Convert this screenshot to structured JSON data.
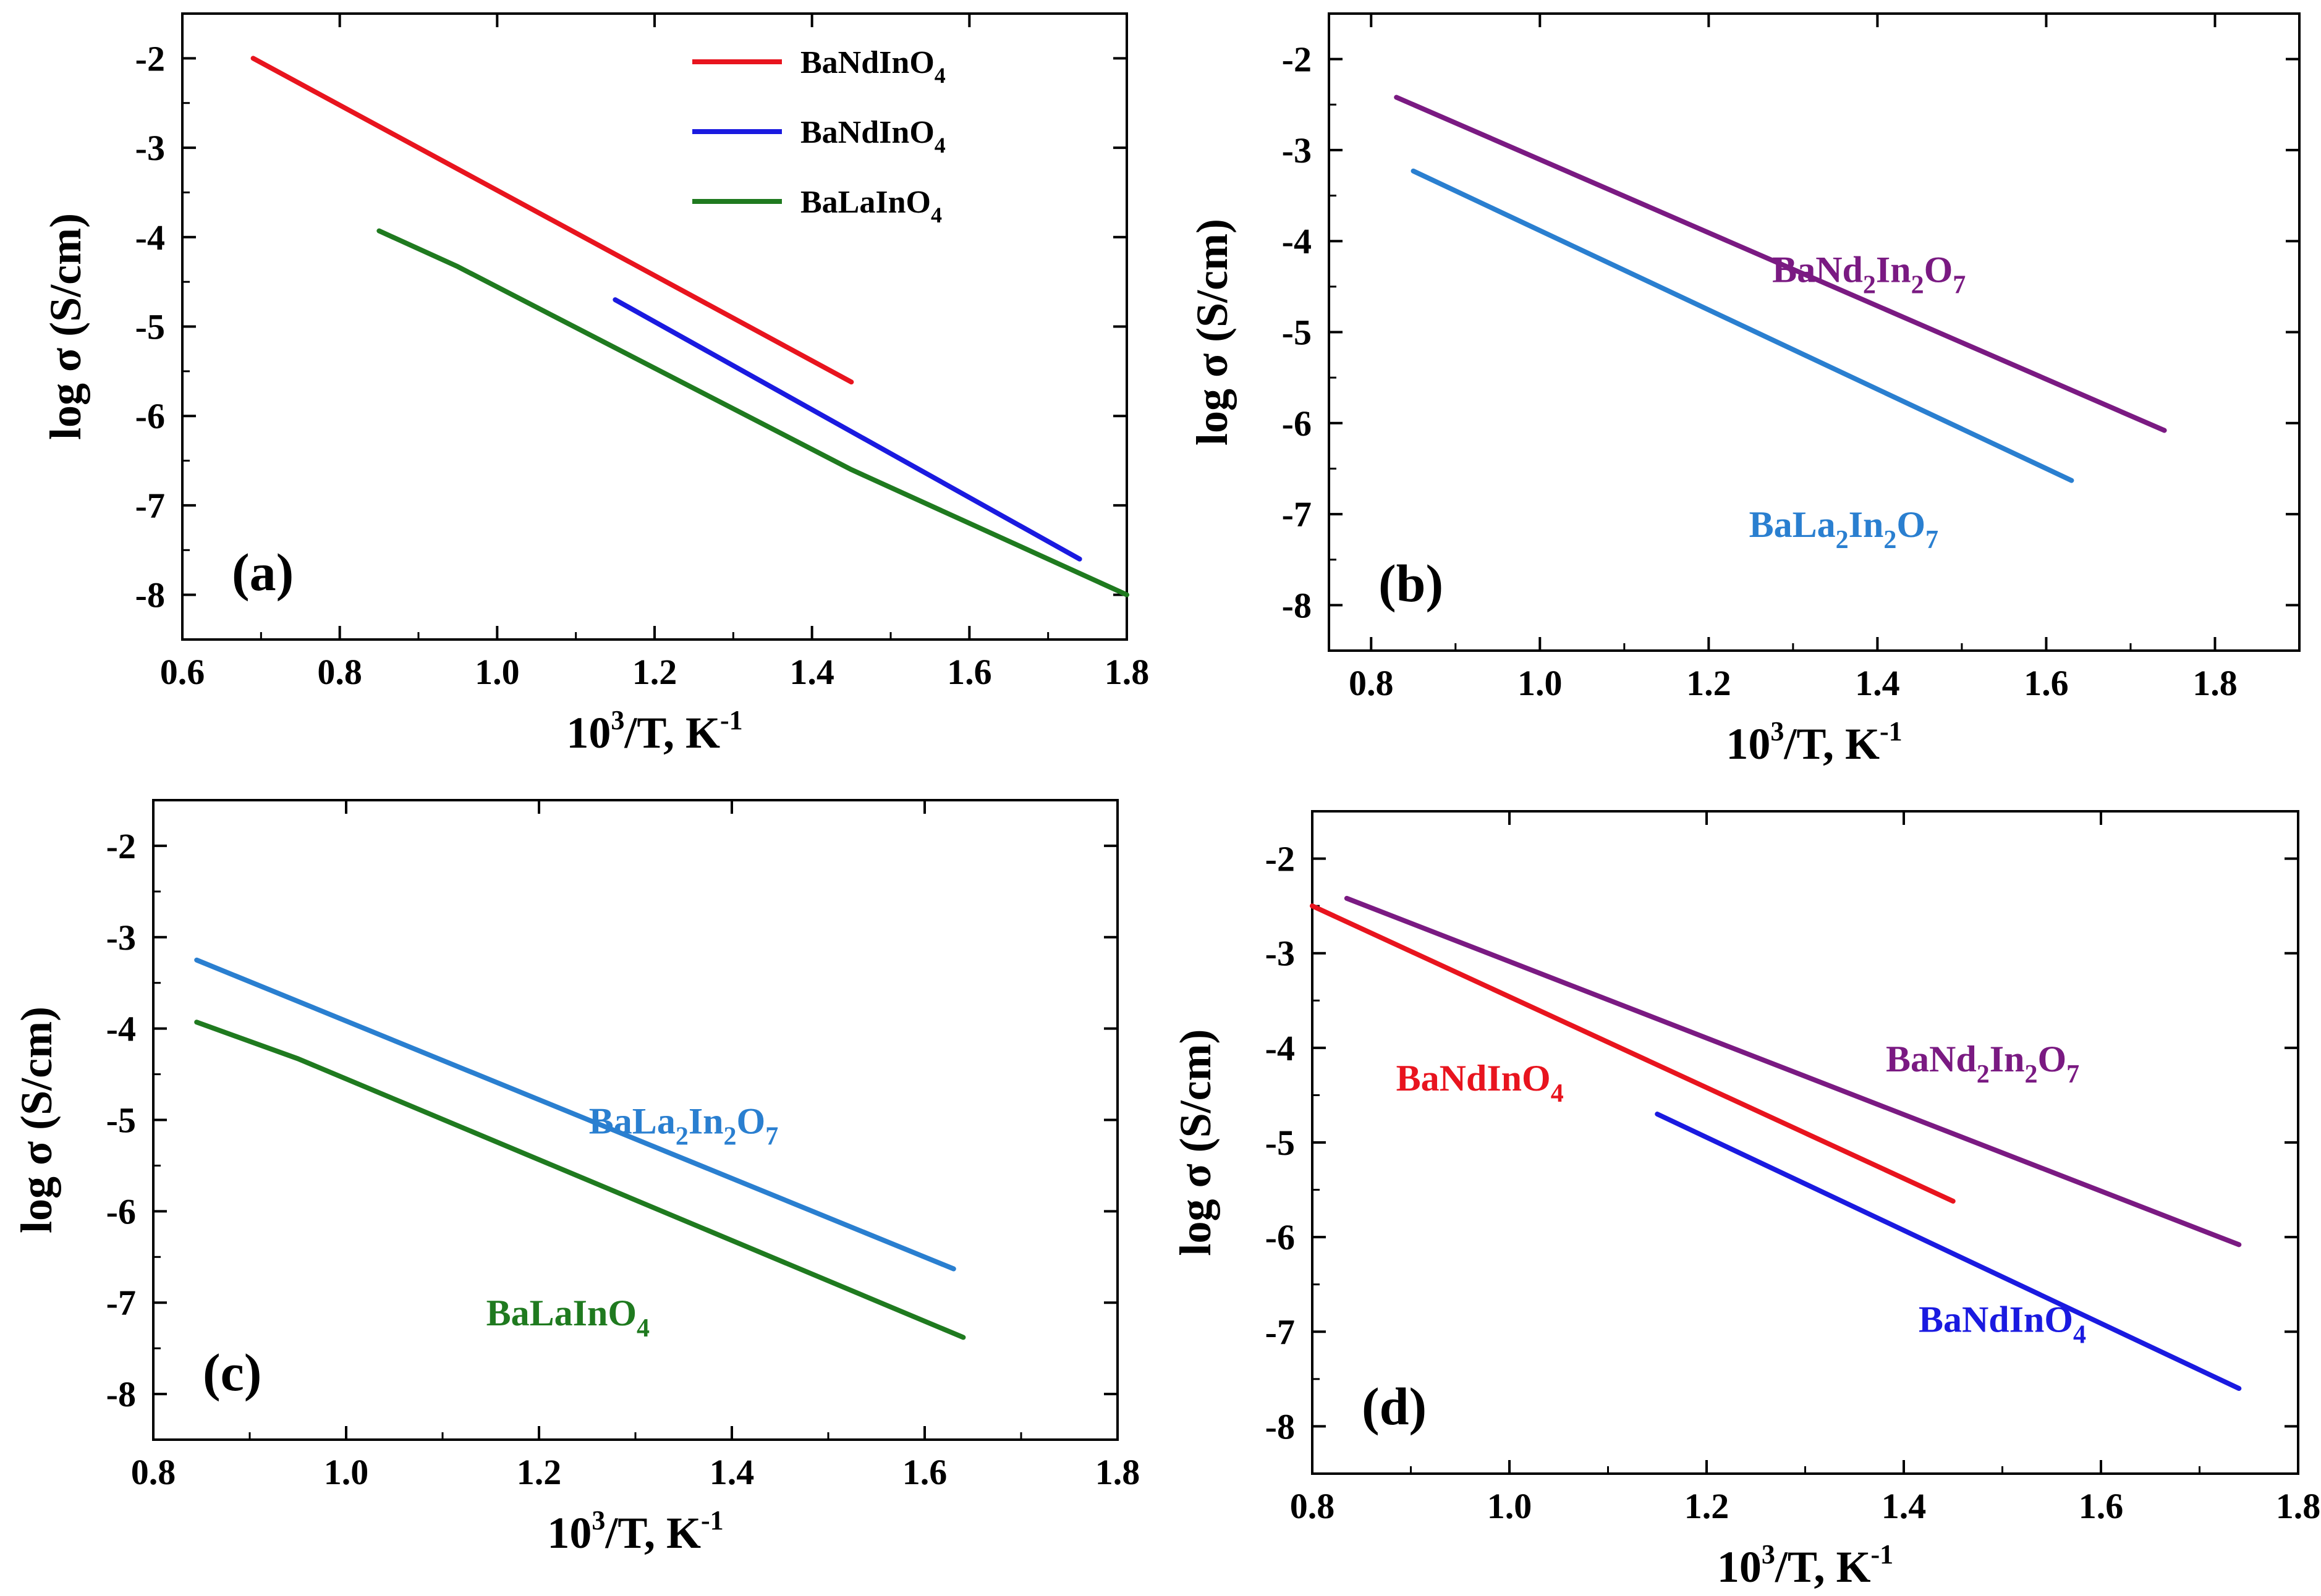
{
  "colors": {
    "red": "#e8141e",
    "blue": "#1a1ae0",
    "green": "#1f7a1f",
    "purple": "#7a1a82",
    "skyblue": "#2a7fd0"
  },
  "chart_data": [
    {
      "id": "a",
      "type": "line",
      "panel_label": "(a)",
      "xlabel": {
        "base": "10",
        "sup": "3",
        "mid": "/T, K",
        "sup2": "-1"
      },
      "ylabel": "log σ (S/cm)",
      "xlim": [
        0.6,
        1.8
      ],
      "ylim": [
        -8.5,
        -1.5
      ],
      "xticks": [
        0.6,
        0.8,
        1.0,
        1.2,
        1.4,
        1.6,
        1.8
      ],
      "xtick_labels": [
        "0.6",
        "0.8",
        "1.0",
        "1.2",
        "1.4",
        "1.6",
        "1.8"
      ],
      "yticks": [
        -8,
        -7,
        -6,
        -5,
        -4,
        -3,
        -2
      ],
      "ytick_labels": [
        "-8",
        "-7",
        "-6",
        "-5",
        "-4",
        "-3",
        "-2"
      ],
      "legend_position": "top-right",
      "series": [
        {
          "name": "BaNdInO",
          "sub": "4",
          "color_key": "red",
          "x": [
            0.69,
            1.45
          ],
          "y": [
            -2.0,
            -5.62
          ],
          "label": {
            "show": false
          }
        },
        {
          "name": "BaNdInO",
          "sub": "4",
          "color_key": "blue",
          "x": [
            1.15,
            1.74
          ],
          "y": [
            -4.7,
            -7.6
          ],
          "label": {
            "show": false
          }
        },
        {
          "name": "BaLaInO",
          "sub": "4",
          "color_key": "green",
          "x": [
            0.85,
            0.95,
            1.45,
            1.8
          ],
          "y": [
            -3.93,
            -4.33,
            -6.6,
            -8.0
          ],
          "label": {
            "show": false
          }
        }
      ]
    },
    {
      "id": "b",
      "type": "line",
      "panel_label": "(b)",
      "xlabel": {
        "base": "10",
        "sup": "3",
        "mid": "/T, K",
        "sup2": "-1"
      },
      "ylabel": "log σ (S/cm)",
      "xlim": [
        0.75,
        1.9
      ],
      "ylim": [
        -8.5,
        -1.5
      ],
      "xticks": [
        0.8,
        1.0,
        1.2,
        1.4,
        1.6,
        1.8
      ],
      "xtick_labels": [
        "0.8",
        "1.0",
        "1.2",
        "1.4",
        "1.6",
        "1.8"
      ],
      "yticks": [
        -8,
        -7,
        -6,
        -5,
        -4,
        -3,
        -2
      ],
      "ytick_labels": [
        "-8",
        "-7",
        "-6",
        "-5",
        "-4",
        "-3",
        "-2"
      ],
      "series": [
        {
          "name": "BaNd",
          "color_key": "purple",
          "x": [
            0.83,
            1.74
          ],
          "y": [
            -2.42,
            -6.08
          ],
          "label": {
            "show": true,
            "parts": [
              [
                "BaNd",
                ""
              ],
              [
                "2",
                "sub"
              ],
              [
                "In",
                ""
              ],
              [
                "2",
                "sub"
              ],
              [
                "O",
                ""
              ],
              [
                "7",
                "sub"
              ]
            ],
            "x": 1.39,
            "y": -4.45
          }
        },
        {
          "name": "BaLa",
          "color_key": "skyblue",
          "x": [
            0.85,
            1.63
          ],
          "y": [
            -3.23,
            -6.63
          ],
          "label": {
            "show": true,
            "parts": [
              [
                "BaLa",
                ""
              ],
              [
                "2",
                "sub"
              ],
              [
                "In",
                ""
              ],
              [
                "2",
                "sub"
              ],
              [
                "O",
                ""
              ],
              [
                "7",
                "sub"
              ]
            ],
            "x": 1.36,
            "y": -7.25
          }
        }
      ]
    },
    {
      "id": "c",
      "type": "line",
      "panel_label": "(c)",
      "xlabel": {
        "base": "10",
        "sup": "3",
        "mid": "/T, K",
        "sup2": "-1"
      },
      "ylabel": "log σ (S/cm)",
      "xlim": [
        0.8,
        1.8
      ],
      "ylim": [
        -8.5,
        -1.5
      ],
      "xticks": [
        0.8,
        1.0,
        1.2,
        1.4,
        1.6,
        1.8
      ],
      "xtick_labels": [
        "0.8",
        "1.0",
        "1.2",
        "1.4",
        "1.6",
        "1.8"
      ],
      "yticks": [
        -8,
        -7,
        -6,
        -5,
        -4,
        -3,
        -2
      ],
      "ytick_labels": [
        "-8",
        "-7",
        "-6",
        "-5",
        "-4",
        "-3",
        "-2"
      ],
      "series": [
        {
          "name": "BaLa",
          "color_key": "skyblue",
          "x": [
            0.845,
            1.63
          ],
          "y": [
            -3.25,
            -6.63
          ],
          "label": {
            "show": true,
            "parts": [
              [
                "BaLa",
                ""
              ],
              [
                "2",
                "sub"
              ],
              [
                "In",
                ""
              ],
              [
                "2",
                "sub"
              ],
              [
                "O",
                ""
              ],
              [
                "7",
                "sub"
              ]
            ],
            "x": 1.35,
            "y": -5.15
          }
        },
        {
          "name": "BaLaInO",
          "color_key": "green",
          "x": [
            0.845,
            0.95,
            1.64
          ],
          "y": [
            -3.93,
            -4.33,
            -7.38
          ],
          "label": {
            "show": true,
            "parts": [
              [
                "BaLaInO",
                ""
              ],
              [
                "4",
                "sub"
              ]
            ],
            "x": 1.23,
            "y": -7.25
          }
        }
      ]
    },
    {
      "id": "d",
      "type": "line",
      "panel_label": "(d)",
      "xlabel": {
        "base": "10",
        "sup": "3",
        "mid": "/T, K",
        "sup2": "-1"
      },
      "ylabel": "log σ (S/cm)",
      "xlim": [
        0.8,
        1.8
      ],
      "ylim": [
        -8.5,
        -1.5
      ],
      "xticks": [
        0.8,
        1.0,
        1.2,
        1.4,
        1.6,
        1.8
      ],
      "xtick_labels": [
        "0.8",
        "1.0",
        "1.2",
        "1.4",
        "1.6",
        "1.8"
      ],
      "yticks": [
        -8,
        -7,
        -6,
        -5,
        -4,
        -3,
        -2
      ],
      "ytick_labels": [
        "-8",
        "-7",
        "-6",
        "-5",
        "-4",
        "-3",
        "-2"
      ],
      "series": [
        {
          "name": "BaNd",
          "color_key": "purple",
          "x": [
            0.835,
            1.74
          ],
          "y": [
            -2.42,
            -6.08
          ],
          "label": {
            "show": true,
            "parts": [
              [
                "BaNd",
                ""
              ],
              [
                "2",
                "sub"
              ],
              [
                "In",
                ""
              ],
              [
                "2",
                "sub"
              ],
              [
                "O",
                ""
              ],
              [
                "7",
                "sub"
              ]
            ],
            "x": 1.48,
            "y": -4.25
          }
        },
        {
          "name": "BaNdInO",
          "color_key": "red",
          "x": [
            0.8,
            1.45
          ],
          "y": [
            -2.5,
            -5.62
          ],
          "label": {
            "show": true,
            "parts": [
              [
                "BaNdInO",
                ""
              ],
              [
                "4",
                "sub"
              ]
            ],
            "x": 0.97,
            "y": -4.45
          }
        },
        {
          "name": "BaNdInO",
          "color_key": "blue",
          "x": [
            1.15,
            1.74
          ],
          "y": [
            -4.7,
            -7.6
          ],
          "label": {
            "show": true,
            "parts": [
              [
                "BaNdInO",
                ""
              ],
              [
                "4",
                "sub"
              ]
            ],
            "x": 1.5,
            "y": -7.0
          }
        }
      ]
    }
  ]
}
